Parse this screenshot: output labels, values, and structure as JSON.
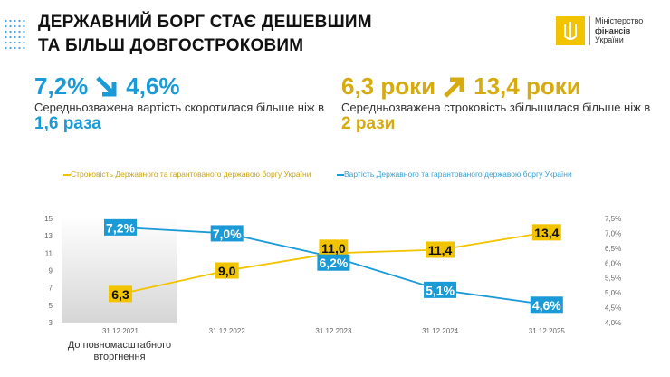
{
  "header": {
    "title_line1": "ДЕРЖАВНИЙ БОРГ СТАЄ ДЕШЕВШИМ",
    "title_line2": "ТА БІЛЬШ ДОВГОСТРОКОВИМ"
  },
  "logo": {
    "line1": "Міністерство",
    "line2": "фінансів",
    "line3": "України"
  },
  "kpi_cost": {
    "from": "7,2%",
    "to": "4,6%",
    "text": "Середньозважена вартість скоротилася більше ніж в",
    "factor": "1,6 раза",
    "arrow": "arrow-down-right-icon"
  },
  "kpi_term": {
    "from": "6,3 роки",
    "to": "13,4 роки",
    "text": "Середньозважена строковість збільшилася більше ніж в",
    "factor": "2 рази",
    "arrow": "arrow-up-right-icon"
  },
  "colors": {
    "blue": "#1a9ad6",
    "gold": "#f2c400",
    "gold_text": "#d6ab10"
  },
  "chart_data": {
    "type": "line",
    "categories": [
      "31.12.2021",
      "31.12.2022",
      "31.12.2023",
      "31.12.2024",
      "31.12.2025"
    ],
    "category_note": "До повномасштабного вторгнення",
    "series": [
      {
        "name": "Строковість Державного та гарантованого державою боргу України",
        "axis": "left",
        "color": "#f2c400",
        "values": [
          6.3,
          9.0,
          11.0,
          11.4,
          13.4
        ],
        "labels": [
          "6,3",
          "9,0",
          "11,0",
          "11,4",
          "13,4"
        ]
      },
      {
        "name": "Вартість Державного та гарантованого державою боргу України",
        "axis": "right",
        "color": "#1a9ad6",
        "values": [
          7.2,
          7.0,
          6.2,
          5.1,
          4.6
        ],
        "labels": [
          "7,2%",
          "7,0%",
          "6,2%",
          "5,1%",
          "4,6%"
        ]
      }
    ],
    "y_left": {
      "range": [
        3,
        15
      ],
      "ticks": [
        "3",
        "5",
        "7",
        "9",
        "11",
        "13",
        "15"
      ]
    },
    "y_right": {
      "range": [
        4.0,
        7.5
      ],
      "ticks": [
        "4,0%",
        "4,5%",
        "5,0%",
        "5,5%",
        "6,0%",
        "6,5%",
        "7,0%",
        "7,5%"
      ]
    },
    "legend": "top",
    "grid": false
  }
}
